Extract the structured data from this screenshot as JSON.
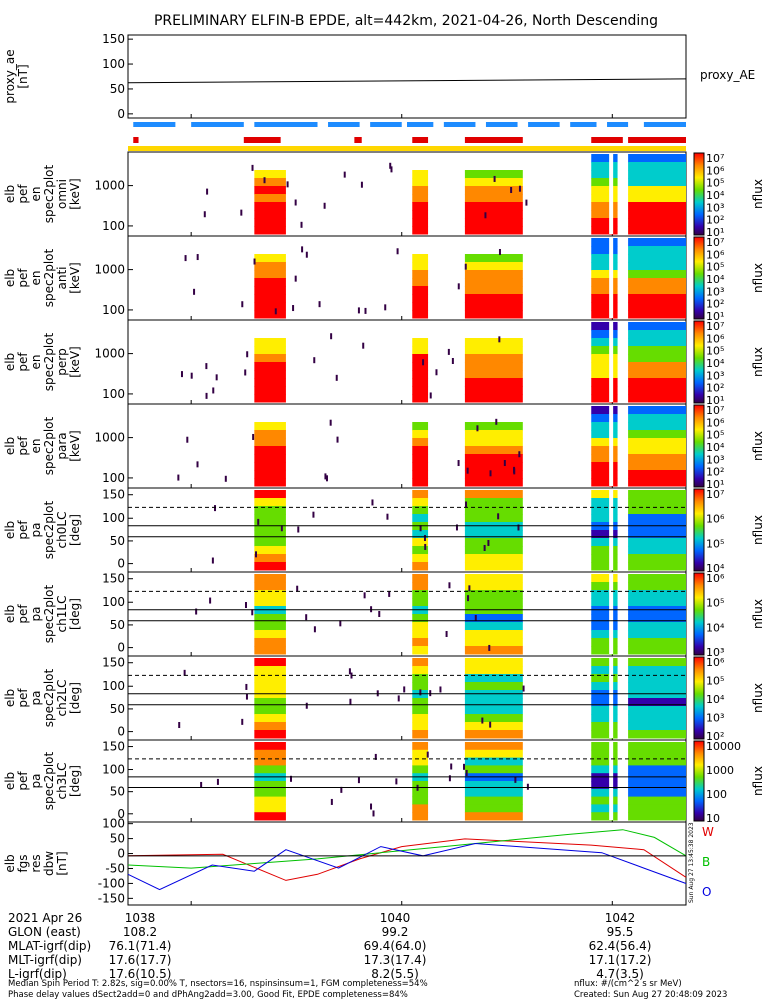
{
  "title": "PRELIMINARY ELFIN-B EPDE, alt=442km, 2021-04-26, North Descending",
  "chart_data": {
    "type": "multi-panel spectrogram",
    "panels": [
      {
        "ylabel": [
          "proxy_ae",
          "[nT]"
        ],
        "kind": "line",
        "yticks": [
          "150",
          "100",
          "50",
          "0"
        ],
        "ylim": [
          -10,
          160
        ],
        "legend": "proxy_AE",
        "series": [
          {
            "name": "proxy_AE",
            "x": [
              1037.4,
              1042.7
            ],
            "y": [
              62,
              70
            ]
          }
        ]
      },
      {
        "ylabel": [
          "elb",
          "pef",
          "en",
          "spec2plot",
          "omni",
          "[keV]"
        ],
        "kind": "energy",
        "yticks": [
          "1000",
          "100"
        ],
        "cbar_ticks": [
          "10⁷",
          "10⁶",
          "10⁵",
          "10⁴",
          "10³",
          "10²",
          "10¹"
        ],
        "cbar_label": "nflux"
      },
      {
        "ylabel": [
          "elb",
          "pef",
          "en",
          "spec2plot",
          "anti",
          "[keV]"
        ],
        "kind": "energy",
        "yticks": [
          "1000",
          "100"
        ],
        "cbar_ticks": [
          "10⁷",
          "10⁶",
          "10⁵",
          "10⁴",
          "10³",
          "10²",
          "10¹"
        ],
        "cbar_label": "nflux"
      },
      {
        "ylabel": [
          "elb",
          "pef",
          "en",
          "spec2plot",
          "perp",
          "[keV]"
        ],
        "kind": "energy",
        "yticks": [
          "1000",
          "100"
        ],
        "cbar_ticks": [
          "10⁷",
          "10⁶",
          "10⁵",
          "10⁴",
          "10³",
          "10²",
          "10¹"
        ],
        "cbar_label": "nflux"
      },
      {
        "ylabel": [
          "elb",
          "pef",
          "en",
          "spec2plot",
          "para",
          "[keV]"
        ],
        "kind": "energy",
        "yticks": [
          "1000",
          "100"
        ],
        "cbar_ticks": [
          "10⁷",
          "10⁶",
          "10⁵",
          "10⁴",
          "10³",
          "10²",
          "10¹"
        ],
        "cbar_label": "nflux"
      },
      {
        "ylabel": [
          "elb",
          "pef",
          "pa",
          "spec2plot",
          "ch0LC",
          "[deg]"
        ],
        "kind": "pa",
        "yticks": [
          "150",
          "100",
          "50",
          "0"
        ],
        "cbar_ticks": [
          "10⁷",
          "10⁶",
          "10⁵",
          "10⁴"
        ],
        "cbar_label": "nflux"
      },
      {
        "ylabel": [
          "elb",
          "pef",
          "pa",
          "spec2plot",
          "ch1LC",
          "[deg]"
        ],
        "kind": "pa",
        "yticks": [
          "150",
          "100",
          "50",
          "0"
        ],
        "cbar_ticks": [
          "10⁶",
          "10⁵",
          "10⁴",
          "10³"
        ],
        "cbar_label": "nflux"
      },
      {
        "ylabel": [
          "elb",
          "pef",
          "pa",
          "spec2plot",
          "ch2LC",
          "[deg]"
        ],
        "kind": "pa",
        "yticks": [
          "150",
          "100",
          "50",
          "0"
        ],
        "cbar_ticks": [
          "10⁶",
          "10⁵",
          "10⁴",
          "10³",
          "10²"
        ],
        "cbar_label": "nflux"
      },
      {
        "ylabel": [
          "elb",
          "pef",
          "pa",
          "spec2plot",
          "ch3LC",
          "[deg]"
        ],
        "kind": "pa",
        "yticks": [
          "150",
          "100",
          "50",
          "0"
        ],
        "cbar_ticks": [
          "10000",
          "1000",
          "100",
          "10"
        ],
        "cbar_label": "nflux"
      },
      {
        "ylabel": [
          "elb",
          "fgs",
          "res",
          "dbw",
          "[nT]"
        ],
        "kind": "line",
        "yticks": [
          "100",
          "50",
          "0",
          "-50",
          "-100",
          "-150"
        ],
        "ylim": [
          -160,
          110
        ],
        "legend_ticks": [
          "W",
          "B",
          "O"
        ],
        "timestamp": "Sun Aug 27 13:45:38 2023",
        "series": [
          {
            "name": "W",
            "color": "#e00000",
            "x": [
              1037.4,
              1038.3,
              1038.9,
              1039.2,
              1039.6,
              1040.0,
              1040.6,
              1041.2,
              1041.8,
              1042.3,
              1042.7
            ],
            "y": [
              0,
              5,
              -80,
              -60,
              -10,
              30,
              55,
              45,
              35,
              20,
              -70
            ]
          },
          {
            "name": "B",
            "color": "#00c000",
            "x": [
              1037.4,
              1038.0,
              1038.6,
              1039.2,
              1039.8,
              1040.4,
              1041.0,
              1041.6,
              1042.1,
              1042.4,
              1042.7
            ],
            "y": [
              -30,
              -40,
              -25,
              -10,
              10,
              30,
              50,
              70,
              85,
              60,
              0
            ]
          },
          {
            "name": "O",
            "color": "#0000e0",
            "x": [
              1037.4,
              1037.7,
              1038.2,
              1038.6,
              1038.9,
              1039.4,
              1039.8,
              1040.2,
              1040.7,
              1041.3,
              1041.9,
              1042.3,
              1042.7
            ],
            "y": [
              -60,
              -110,
              -30,
              -50,
              20,
              -40,
              30,
              0,
              40,
              25,
              10,
              -40,
              -90
            ]
          }
        ]
      }
    ],
    "xaxis": {
      "ticks": [
        1038,
        1040,
        1042
      ],
      "xlim": [
        1037.4,
        1042.7
      ]
    },
    "bars": {
      "blue_row": "science zone",
      "red_row": "collection",
      "yellow_row": "FGM"
    }
  },
  "footer": {
    "rows": [
      {
        "label": "2021 Apr 26",
        "v": [
          "1038",
          "1040",
          "1042"
        ]
      },
      {
        "label": "GLON (east)",
        "v": [
          "108.2",
          "99.2",
          "95.5"
        ]
      },
      {
        "label": "MLAT-igrf(dip)",
        "v": [
          "76.1(71.4)",
          "69.4(64.0)",
          "62.4(56.4)"
        ]
      },
      {
        "label": "MLT-igrf(dip)",
        "v": [
          "17.6(17.7)",
          "17.3(17.4)",
          "17.1(17.2)"
        ]
      },
      {
        "label": "L-igrf(dip)",
        "v": [
          "17.6(10.5)",
          "8.2(5.5)",
          "4.7(3.5)"
        ]
      }
    ],
    "note1": "Median Spin Period T: 2.82s, sig=0.00% T, nsectors=16, nspinsinsum=1, FGM completeness=54%",
    "note2": "Phase delay values dSect2add=0 and dPhAng2add=3.00, Good Fit, EPDE completeness=84%",
    "units": "nflux: #/(cm^2 s sr MeV)",
    "created": "Created: Sun Aug 27 20:48:09 2023"
  },
  "colors": {
    "line": "#000000",
    "blue_bar": "#1e8cff",
    "red_bar": "#e00000",
    "yellow_bar": "#ffd700"
  }
}
